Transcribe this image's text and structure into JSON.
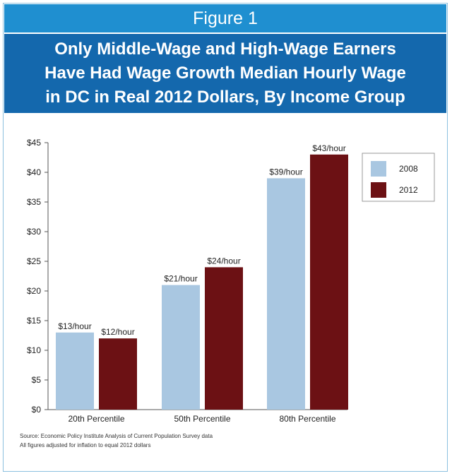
{
  "figure_label": "Figure 1",
  "title_lines": [
    "Only Middle-Wage and High-Wage Earners",
    "Have Had Wage Growth Median Hourly Wage",
    "in DC in Real 2012 Dollars, By Income Group"
  ],
  "notes": [
    "Source: Economic Policy Institute Analysis of Current Population Survey data",
    "All figures adjusted for inflation to equal 2012 dollars"
  ],
  "colors": {
    "series_2008": "#a9c7e1",
    "series_2012": "#6c1114"
  },
  "chart_data": {
    "type": "bar",
    "categories": [
      "20th Percentile",
      "50th Percentile",
      "80th Percentile"
    ],
    "series": [
      {
        "name": "2008",
        "values": [
          13,
          21,
          39
        ],
        "labels": [
          "$13/hour",
          "$21/hour",
          "$39/hour"
        ]
      },
      {
        "name": "2012",
        "values": [
          12,
          24,
          43
        ],
        "labels": [
          "$12/hour",
          "$24/hour",
          "$43/hour"
        ]
      }
    ],
    "ylim": [
      0,
      45
    ],
    "yticks": [
      0,
      5,
      10,
      15,
      20,
      25,
      30,
      35,
      40,
      45
    ],
    "ytick_labels": [
      "$0",
      "$5",
      "$10",
      "$15",
      "$20",
      "$25",
      "$30",
      "$35",
      "$40",
      "$45"
    ],
    "legend_position": "top-right",
    "grid": false
  }
}
